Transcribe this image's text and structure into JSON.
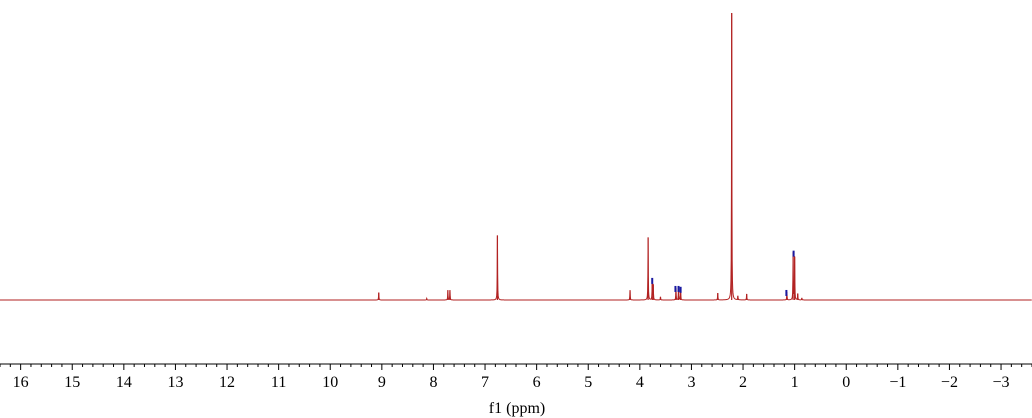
{
  "chart_data": {
    "type": "line",
    "xlabel": "f1 (ppm)",
    "ylabel": "",
    "xlim": [
      16.4,
      -3.6
    ],
    "x_reversed": true,
    "ylim": [
      0,
      100
    ],
    "grid": false,
    "x_ticks_major": [
      16,
      15,
      14,
      13,
      12,
      11,
      10,
      9,
      8,
      7,
      6,
      5,
      4,
      3,
      2,
      1,
      0,
      -1,
      -2,
      -3
    ],
    "x_tick_labels": [
      "16",
      "15",
      "14",
      "13",
      "12",
      "11",
      "10",
      "9",
      "8",
      "7",
      "6",
      "5",
      "4",
      "3",
      "2",
      "1",
      "0",
      "−1",
      "−2",
      "−3"
    ],
    "series": [
      {
        "color": "#b22222",
        "peaks": [
          {
            "x": 9.06,
            "y": 2.6
          },
          {
            "x": 8.13,
            "y": 0.5
          },
          {
            "x": 7.72,
            "y": 3.4
          },
          {
            "x": 7.68,
            "y": 3.4
          },
          {
            "x": 6.76,
            "y": 22.5
          },
          {
            "x": 4.19,
            "y": 3.4
          },
          {
            "x": 3.84,
            "y": 21.8
          },
          {
            "x": 3.76,
            "y": 7.0
          },
          {
            "x": 3.74,
            "y": 5.3
          },
          {
            "x": 3.6,
            "y": 1.1
          },
          {
            "x": 3.3,
            "y": 4.2
          },
          {
            "x": 3.25,
            "y": 4.2
          },
          {
            "x": 3.21,
            "y": 3.9
          },
          {
            "x": 2.49,
            "y": 2.4
          },
          {
            "x": 2.22,
            "y": 100
          },
          {
            "x": 2.1,
            "y": 1.4
          },
          {
            "x": 1.93,
            "y": 2.1
          },
          {
            "x": 1.15,
            "y": 2.8
          },
          {
            "x": 1.03,
            "y": 16.5
          },
          {
            "x": 1.0,
            "y": 15.0
          },
          {
            "x": 0.94,
            "y": 2.2
          },
          {
            "x": 0.86,
            "y": 0.7
          }
        ]
      }
    ],
    "integration_marks": {
      "color": "#1a1aa0",
      "positions": [
        3.76,
        3.31,
        3.25,
        3.21,
        1.16,
        1.02
      ]
    }
  }
}
